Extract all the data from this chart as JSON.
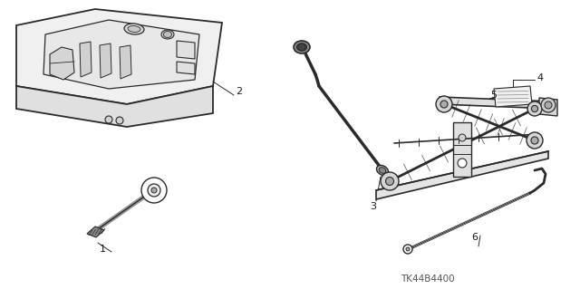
{
  "background_color": "#ffffff",
  "line_color": "#2a2a2a",
  "label_color": "#1a1a1a",
  "part_code": "TK44B4400",
  "figsize": [
    6.4,
    3.19
  ],
  "dpi": 100
}
